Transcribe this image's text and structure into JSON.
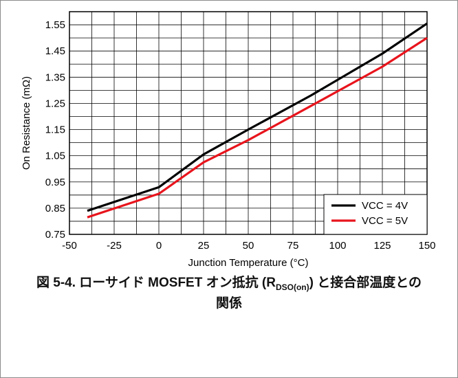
{
  "chart_data": {
    "type": "line",
    "xlabel": "Junction Temperature (°C)",
    "ylabel": "On Resistance (mΩ)",
    "xlim": [
      -50,
      150
    ],
    "ylim": [
      0.75,
      1.6
    ],
    "x_ticks": [
      -50,
      -25,
      0,
      25,
      50,
      75,
      100,
      125,
      150
    ],
    "x_tick_labels": [
      "-50",
      "-25",
      "0",
      "25",
      "50",
      "75",
      "100",
      "125",
      "150"
    ],
    "y_ticks": [
      0.75,
      0.85,
      0.95,
      1.05,
      1.15,
      1.25,
      1.35,
      1.45,
      1.55
    ],
    "y_tick_labels": [
      "0.75",
      "0.85",
      "0.95",
      "1.05",
      "1.15",
      "1.25",
      "1.35",
      "1.45",
      "1.55"
    ],
    "grid": true,
    "legend_position": "bottom-right",
    "series": [
      {
        "name": "VCC = 4V",
        "color": "#000000",
        "x": [
          -40,
          0,
          25,
          50,
          85,
          125,
          150
        ],
        "y": [
          0.84,
          0.93,
          1.055,
          1.15,
          1.28,
          1.44,
          1.555
        ]
      },
      {
        "name": "VCC = 5V",
        "color": "#e8141c",
        "x": [
          -40,
          0,
          25,
          50,
          85,
          125,
          150
        ],
        "y": [
          0.815,
          0.905,
          1.025,
          1.11,
          1.24,
          1.39,
          1.5
        ]
      }
    ]
  },
  "caption": {
    "prefix": "図 5-4. ローサイド MOSFET オン抵抗 (R",
    "subscript": "DSO(on)",
    "suffix": ") と接合部温度との",
    "line2": "関係"
  }
}
